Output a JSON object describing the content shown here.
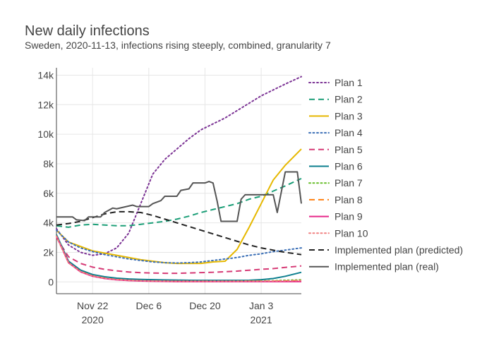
{
  "chart_data": {
    "type": "line",
    "title": "New daily infections",
    "subtitle": "Sweden, 2020-11-13, infections rising steeply, combined, granularity 7",
    "x_axis": {
      "type": "date",
      "range": [
        "2020-11-13",
        "2021-01-13"
      ],
      "ticks": [
        {
          "date": "2020-11-22",
          "label": "Nov 22",
          "sublabel": "2020"
        },
        {
          "date": "2020-12-06",
          "label": "Dec 6",
          "sublabel": ""
        },
        {
          "date": "2020-12-20",
          "label": "Dec 20",
          "sublabel": ""
        },
        {
          "date": "2021-01-03",
          "label": "Jan 3",
          "sublabel": "2021"
        }
      ]
    },
    "y_axis": {
      "range": [
        -800,
        14500
      ],
      "ticks": [
        {
          "value": 0,
          "label": "0"
        },
        {
          "value": 2000,
          "label": "2k"
        },
        {
          "value": 4000,
          "label": "4k"
        },
        {
          "value": 6000,
          "label": "6k"
        },
        {
          "value": 8000,
          "label": "8k"
        },
        {
          "value": 10000,
          "label": "10k"
        },
        {
          "value": 12000,
          "label": "12k"
        },
        {
          "value": 14000,
          "label": "14k"
        }
      ]
    },
    "grid": true,
    "legend_position": "right",
    "series": [
      {
        "name": "Plan 1",
        "color": "#7b3294",
        "dash": "dot",
        "x": [
          "2020-11-13",
          "2020-11-16",
          "2020-11-19",
          "2020-11-22",
          "2020-11-25",
          "2020-11-28",
          "2020-12-01",
          "2020-12-04",
          "2020-12-07",
          "2020-12-10",
          "2020-12-13",
          "2020-12-16",
          "2020-12-19",
          "2020-12-22",
          "2020-12-25",
          "2020-12-28",
          "2020-12-31",
          "2021-01-03",
          "2021-01-06",
          "2021-01-09",
          "2021-01-13"
        ],
        "y": [
          3600,
          2500,
          2000,
          1800,
          1900,
          2300,
          3300,
          5300,
          7300,
          8300,
          9000,
          9700,
          10300,
          10700,
          11100,
          11600,
          12100,
          12600,
          13000,
          13400,
          13900
        ]
      },
      {
        "name": "Plan 2",
        "color": "#1b9e77",
        "dash": "dash",
        "x": [
          "2020-11-13",
          "2020-11-16",
          "2020-11-19",
          "2020-11-22",
          "2020-11-25",
          "2020-11-28",
          "2020-12-01",
          "2020-12-04",
          "2020-12-07",
          "2020-12-10",
          "2020-12-13",
          "2020-12-16",
          "2020-12-19",
          "2020-12-22",
          "2020-12-25",
          "2020-12-28",
          "2020-12-31",
          "2021-01-03",
          "2021-01-06",
          "2021-01-09",
          "2021-01-13"
        ],
        "y": [
          3800,
          3700,
          3850,
          3900,
          3850,
          3800,
          3800,
          3900,
          4000,
          4100,
          4250,
          4450,
          4700,
          4900,
          5100,
          5300,
          5600,
          5800,
          6150,
          6500,
          7000
        ]
      },
      {
        "name": "Plan 3",
        "color": "#e6b800",
        "dash": "solid",
        "x": [
          "2020-11-13",
          "2020-11-16",
          "2020-11-19",
          "2020-11-22",
          "2020-11-25",
          "2020-11-28",
          "2020-12-01",
          "2020-12-04",
          "2020-12-07",
          "2020-12-10",
          "2020-12-13",
          "2020-12-16",
          "2020-12-19",
          "2020-12-22",
          "2020-12-25",
          "2020-12-28",
          "2020-12-31",
          "2021-01-03",
          "2021-01-06",
          "2021-01-09",
          "2021-01-13"
        ],
        "y": [
          3500,
          2700,
          2400,
          2100,
          1950,
          1800,
          1650,
          1500,
          1400,
          1300,
          1250,
          1250,
          1250,
          1350,
          1400,
          2200,
          3700,
          5300,
          6900,
          7900,
          9000
        ]
      },
      {
        "name": "Plan 4",
        "color": "#3b6fb6",
        "dash": "dot",
        "x": [
          "2020-11-13",
          "2020-11-16",
          "2020-11-19",
          "2020-11-22",
          "2020-11-25",
          "2020-11-28",
          "2020-12-01",
          "2020-12-04",
          "2020-12-07",
          "2020-12-10",
          "2020-12-13",
          "2020-12-16",
          "2020-12-19",
          "2020-12-22",
          "2020-12-25",
          "2020-12-28",
          "2020-12-31",
          "2021-01-03",
          "2021-01-06",
          "2021-01-09",
          "2021-01-13"
        ],
        "y": [
          3500,
          2700,
          2300,
          2050,
          1850,
          1700,
          1550,
          1450,
          1350,
          1300,
          1280,
          1300,
          1350,
          1450,
          1550,
          1650,
          1800,
          1900,
          2050,
          2150,
          2300
        ]
      },
      {
        "name": "Plan 5",
        "color": "#d63a75",
        "dash": "dash",
        "x": [
          "2020-11-13",
          "2020-11-16",
          "2020-11-19",
          "2020-11-22",
          "2020-11-25",
          "2020-11-28",
          "2020-12-01",
          "2020-12-04",
          "2020-12-07",
          "2020-12-10",
          "2020-12-13",
          "2020-12-16",
          "2020-12-19",
          "2020-12-22",
          "2020-12-25",
          "2020-12-28",
          "2020-12-31",
          "2021-01-03",
          "2021-01-06",
          "2021-01-09",
          "2021-01-13"
        ],
        "y": [
          3000,
          1700,
          1250,
          1000,
          850,
          750,
          670,
          620,
          600,
          580,
          580,
          600,
          630,
          650,
          690,
          730,
          790,
          850,
          900,
          980,
          1080
        ]
      },
      {
        "name": "Plan 6",
        "color": "#0d7f8f",
        "dash": "solid",
        "x": [
          "2020-11-13",
          "2020-11-16",
          "2020-11-19",
          "2020-11-22",
          "2020-11-25",
          "2020-11-28",
          "2020-12-01",
          "2020-12-04",
          "2020-12-07",
          "2020-12-10",
          "2020-12-13",
          "2020-12-16",
          "2020-12-19",
          "2020-12-22",
          "2020-12-25",
          "2020-12-28",
          "2020-12-31",
          "2021-01-03",
          "2021-01-06",
          "2021-01-09",
          "2021-01-13"
        ],
        "y": [
          3200,
          1400,
          800,
          500,
          350,
          250,
          200,
          170,
          150,
          130,
          120,
          110,
          100,
          100,
          100,
          100,
          110,
          150,
          230,
          380,
          650
        ]
      },
      {
        "name": "Plan 7",
        "color": "#66bd28",
        "dash": "dot",
        "x": [
          "2020-11-13",
          "2020-11-16",
          "2020-11-19",
          "2020-11-22",
          "2020-11-25",
          "2020-11-28",
          "2020-12-01",
          "2020-12-04",
          "2020-12-07",
          "2020-12-10",
          "2020-12-13",
          "2020-12-16",
          "2020-12-19",
          "2020-12-22",
          "2020-12-25",
          "2020-12-28",
          "2020-12-31",
          "2021-01-03",
          "2021-01-06",
          "2021-01-09",
          "2021-01-13"
        ],
        "y": [
          3100,
          1300,
          700,
          400,
          250,
          160,
          110,
          80,
          60,
          50,
          40,
          40,
          40,
          40,
          40,
          50,
          60,
          70,
          80,
          110,
          140
        ]
      },
      {
        "name": "Plan 8",
        "color": "#ff7f0e",
        "dash": "dash",
        "x": [
          "2020-11-13",
          "2020-11-16",
          "2020-11-19",
          "2020-11-22",
          "2020-11-25",
          "2020-11-28",
          "2020-12-01",
          "2020-12-04",
          "2020-12-07",
          "2020-12-10",
          "2020-12-13",
          "2020-12-16",
          "2020-12-19",
          "2020-12-22",
          "2020-12-25",
          "2020-12-28",
          "2020-12-31",
          "2021-01-03",
          "2021-01-06",
          "2021-01-09",
          "2021-01-13"
        ],
        "y": [
          3100,
          1300,
          700,
          400,
          250,
          160,
          100,
          70,
          50,
          40,
          30,
          30,
          30,
          30,
          30,
          30,
          40,
          40,
          50,
          60,
          80
        ]
      },
      {
        "name": "Plan 9",
        "color": "#e7298a",
        "dash": "solid",
        "x": [
          "2020-11-13",
          "2020-11-16",
          "2020-11-19",
          "2020-11-22",
          "2020-11-25",
          "2020-11-28",
          "2020-12-01",
          "2020-12-04",
          "2020-12-07",
          "2020-12-10",
          "2020-12-13",
          "2020-12-16",
          "2020-12-19",
          "2020-12-22",
          "2020-12-25",
          "2020-12-28",
          "2020-12-31",
          "2021-01-03",
          "2021-01-06",
          "2021-01-09",
          "2021-01-13"
        ],
        "y": [
          3100,
          1300,
          680,
          380,
          230,
          140,
          90,
          60,
          40,
          30,
          20,
          20,
          20,
          20,
          20,
          20,
          20,
          20,
          20,
          20,
          20
        ]
      },
      {
        "name": "Plan 10",
        "color": "#f08080",
        "dash": "dot",
        "x": [
          "2020-11-13",
          "2020-11-16",
          "2020-11-19",
          "2020-11-22",
          "2020-11-25",
          "2020-11-28",
          "2020-12-01",
          "2020-12-04",
          "2020-12-07",
          "2020-12-10",
          "2020-12-13",
          "2020-12-16",
          "2020-12-19",
          "2020-12-22",
          "2020-12-25",
          "2020-12-28",
          "2020-12-31",
          "2021-01-03",
          "2021-01-06",
          "2021-01-09",
          "2021-01-13"
        ],
        "y": [
          3100,
          1300,
          700,
          400,
          250,
          160,
          110,
          80,
          60,
          50,
          40,
          40,
          40,
          40,
          40,
          40,
          50,
          50,
          60,
          70,
          90
        ]
      },
      {
        "name": "Implemented plan (predicted)",
        "color": "#222222",
        "dash": "dash",
        "x": [
          "2020-11-13",
          "2020-11-16",
          "2020-11-19",
          "2020-11-22",
          "2020-11-25",
          "2020-11-28",
          "2020-12-01",
          "2020-12-04",
          "2020-12-07",
          "2020-12-10",
          "2020-12-13",
          "2020-12-16",
          "2020-12-19",
          "2020-12-22",
          "2020-12-25",
          "2020-12-28",
          "2020-12-31",
          "2021-01-03",
          "2021-01-06",
          "2021-01-09",
          "2021-01-13"
        ],
        "y": [
          3850,
          3950,
          4100,
          4350,
          4600,
          4750,
          4750,
          4700,
          4500,
          4250,
          4000,
          3750,
          3500,
          3250,
          3000,
          2750,
          2500,
          2300,
          2150,
          2000,
          1850
        ]
      },
      {
        "name": "Implemented plan (real)",
        "color": "#555555",
        "dash": "solid",
        "x": [
          "2020-11-13",
          "2020-11-17",
          "2020-11-18",
          "2020-11-20",
          "2020-11-21",
          "2020-11-24",
          "2020-11-25",
          "2020-11-27",
          "2020-11-28",
          "2020-12-02",
          "2020-12-03",
          "2020-12-06",
          "2020-12-07",
          "2020-12-09",
          "2020-12-10",
          "2020-12-13",
          "2020-12-14",
          "2020-12-16",
          "2020-12-17",
          "2020-12-20",
          "2020-12-21",
          "2020-12-22",
          "2020-12-23",
          "2020-12-24",
          "2020-12-25",
          "2020-12-28",
          "2020-12-29",
          "2020-12-30",
          "2021-01-03",
          "2021-01-06",
          "2021-01-07",
          "2021-01-09",
          "2021-01-12",
          "2021-01-13"
        ],
        "y": [
          4400,
          4400,
          4200,
          4150,
          4400,
          4400,
          4700,
          5000,
          4950,
          5200,
          5100,
          5100,
          5300,
          5500,
          5800,
          5800,
          6200,
          6300,
          6700,
          6700,
          6800,
          6700,
          5500,
          4100,
          4100,
          4100,
          5600,
          5900,
          5900,
          5900,
          4700,
          7450,
          7450,
          5300
        ]
      }
    ]
  }
}
